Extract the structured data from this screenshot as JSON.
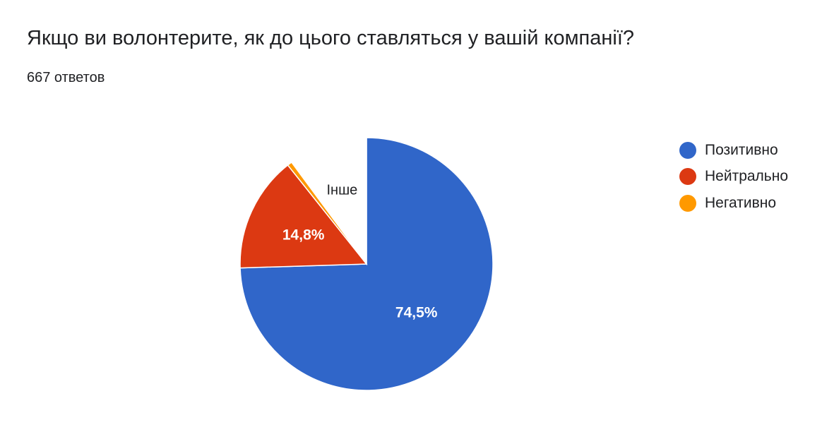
{
  "header": {
    "title": "Якщо ви волонтерите, як до цього ставляться у вашій компанії?",
    "subtitle": "667 ответов"
  },
  "chart_data": {
    "type": "pie",
    "title": "Якщо ви волонтерите, як до цього ставляться у вашій компанії?",
    "subtitle": "667 ответов",
    "start_angle_deg": 90,
    "slices": [
      {
        "label": "Позитивно",
        "value": 74.5,
        "display": "74,5%",
        "color": "#3066c9",
        "legend": true
      },
      {
        "label": "Нейтрально",
        "value": 14.8,
        "display": "14,8%",
        "color": "#dc3912",
        "legend": true
      },
      {
        "label": "Негативно",
        "value": 0.6,
        "display": "",
        "color": "#ff9900",
        "legend": true
      },
      {
        "label": "Інше",
        "value": 10.1,
        "display": "Інше",
        "color": "#ffffff",
        "legend": false
      }
    ],
    "legend_position": "right"
  }
}
